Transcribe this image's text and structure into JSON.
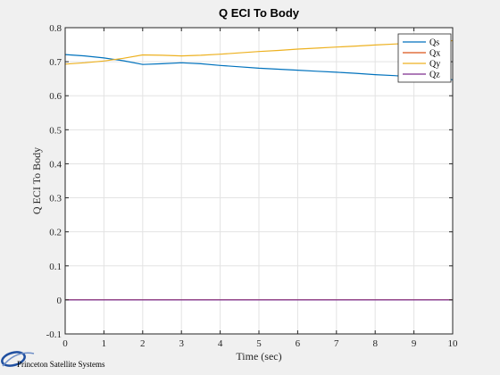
{
  "colors": {
    "background": "#f0f0f0",
    "plot_area": "#ffffff",
    "grid": "#e3e3e3",
    "axis": "#262626",
    "logo_accent": "#1f4fa0"
  },
  "logo": {
    "text": "Princeton Satellite Systems",
    "icon": "psss-swoosh-logo"
  },
  "chart_data": {
    "type": "line",
    "title": "Q ECI To Body",
    "xlabel": "Time (sec)",
    "ylabel": "Q ECI To Body",
    "xlim": [
      0,
      10
    ],
    "ylim": [
      -0.1,
      0.8
    ],
    "xticks": [
      0,
      1,
      2,
      3,
      4,
      5,
      6,
      7,
      8,
      9,
      10
    ],
    "yticks": [
      -0.1,
      0,
      0.1,
      0.2,
      0.3,
      0.4,
      0.5,
      0.6,
      0.7,
      0.8
    ],
    "grid": true,
    "legend_position": "top-right",
    "x": [
      0,
      0.5,
      1,
      1.5,
      2,
      2.5,
      3,
      3.5,
      4,
      4.5,
      5,
      5.5,
      6,
      6.5,
      7,
      7.5,
      8,
      8.5,
      9,
      9.5,
      10
    ],
    "series": [
      {
        "name": "Qs",
        "color": "#0072bd",
        "values": [
          0.721,
          0.717,
          0.711,
          0.703,
          0.692,
          0.694,
          0.697,
          0.694,
          0.689,
          0.685,
          0.681,
          0.678,
          0.675,
          0.672,
          0.669,
          0.666,
          0.662,
          0.659,
          0.655,
          0.651,
          0.647
        ]
      },
      {
        "name": "Qx",
        "color": "#d95319",
        "values": [
          0,
          0,
          0,
          0,
          0,
          0,
          0,
          0,
          0,
          0,
          0,
          0,
          0,
          0,
          0,
          0,
          0,
          0,
          0,
          0,
          0
        ]
      },
      {
        "name": "Qy",
        "color": "#edb120",
        "values": [
          0.693,
          0.697,
          0.702,
          0.71,
          0.72,
          0.719,
          0.717,
          0.719,
          0.722,
          0.726,
          0.73,
          0.733,
          0.737,
          0.74,
          0.743,
          0.746,
          0.749,
          0.752,
          0.755,
          0.758,
          0.762
        ]
      },
      {
        "name": "Qz",
        "color": "#7e2f8e",
        "values": [
          0,
          0,
          0,
          0,
          0,
          0,
          0,
          0,
          0,
          0,
          0,
          0,
          0,
          0,
          0,
          0,
          0,
          0,
          0,
          0,
          0
        ]
      }
    ]
  }
}
